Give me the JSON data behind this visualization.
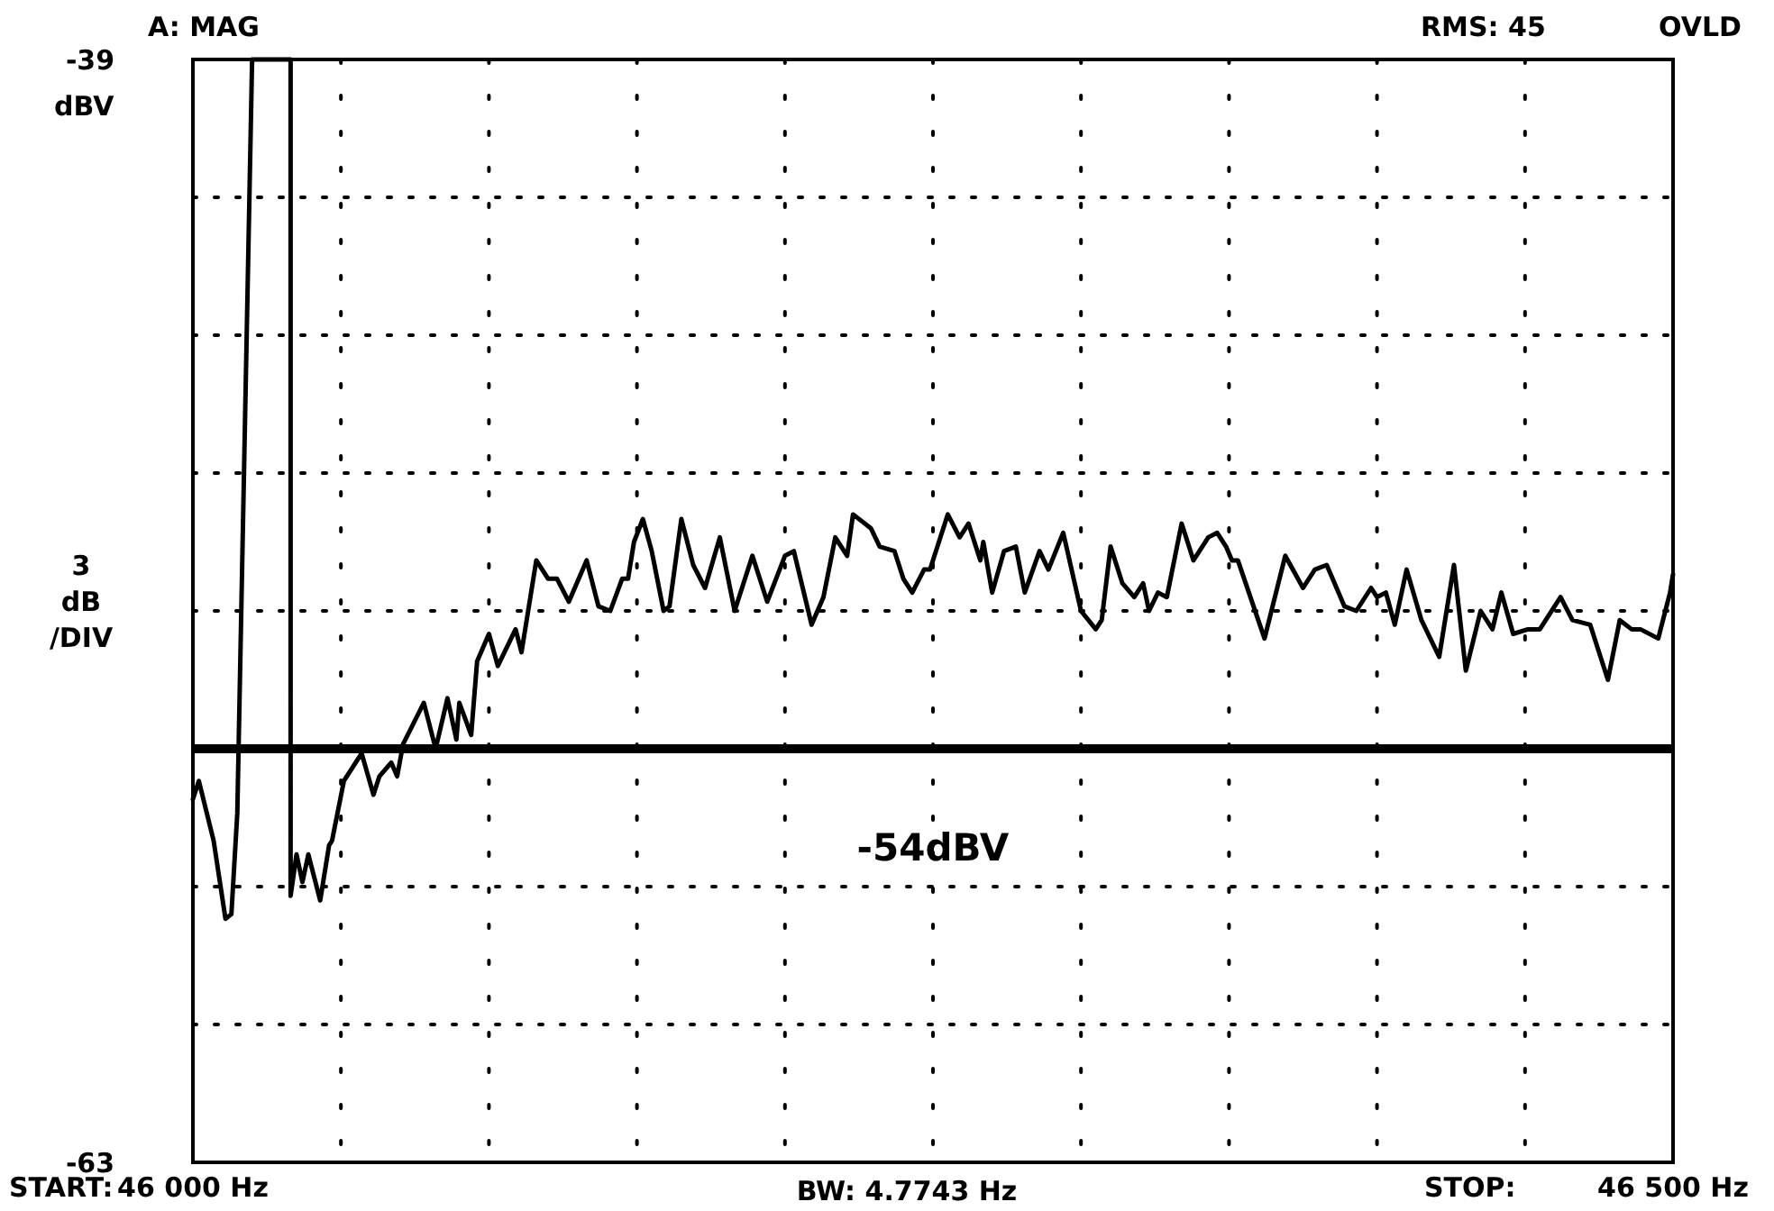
{
  "chart_data": {
    "type": "line",
    "ylabel": "3 dB /DIV",
    "xlabel": "BW: 4.7743 Hz",
    "annotations": [
      "A: MAG",
      "RMS: 45",
      "OVLD",
      "dBV",
      "START:",
      "STOP:"
    ],
    "xlim": [
      46000,
      46500
    ],
    "ylim": [
      -63,
      -39
    ],
    "xticks": [
      {
        "value": 46000,
        "label": "46 000 Hz"
      },
      {
        "value": 46050,
        "label": null
      },
      {
        "value": 46100,
        "label": null
      },
      {
        "value": 46150,
        "label": null
      },
      {
        "value": 46200,
        "label": null
      },
      {
        "value": 46250,
        "label": null
      },
      {
        "value": 46300,
        "label": null
      },
      {
        "value": 46350,
        "label": null
      },
      {
        "value": 46400,
        "label": null
      },
      {
        "value": 46450,
        "label": null
      },
      {
        "value": 46500,
        "label": "46 500 Hz"
      }
    ],
    "yticks": [
      -63,
      {
        "value": -60,
        "label": null
      },
      {
        "value": -57,
        "label": null
      },
      {
        "value": -54,
        "label": null
      },
      {
        "value": -51,
        "label": null
      },
      {
        "value": -48,
        "label": null
      },
      {
        "value": -45,
        "label": null
      },
      {
        "value": -42,
        "label": null
      },
      -39
    ],
    "grid": true,
    "line_style": "solid",
    "ref_lines": [
      {
        "axis": "y",
        "value": -54,
        "label": "-54dBV",
        "color": "#000000"
      }
    ],
    "series": [
      {
        "color": "#000000",
        "x": [
          46000,
          46002,
          46007,
          46011,
          46013,
          46015,
          46020,
          46033,
          46033,
          46035,
          46037,
          46039,
          46043,
          46046,
          46047,
          46051,
          46057,
          46061,
          46063,
          46067,
          46069,
          46071,
          46078,
          46082,
          46086,
          46089,
          46090,
          46094,
          46096,
          46100,
          46103,
          46109,
          46111,
          46116,
          46120,
          46123,
          46127,
          46133,
          46137,
          46141,
          46145,
          46147,
          46149,
          46152,
          46155,
          46159,
          46161,
          46165,
          46169,
          46173,
          46178,
          46183,
          46189,
          46194,
          46200,
          46203,
          46209,
          46213,
          46217,
          46221,
          46223,
          46229,
          46232,
          46237,
          46240,
          46243,
          46247,
          46249,
          46255,
          46259,
          46262,
          46266,
          46267,
          46270,
          46274,
          46278,
          46281,
          46286,
          46289,
          46294,
          46300,
          46305,
          46307,
          46310,
          46314,
          46318,
          46321,
          46323,
          46326,
          46329,
          46334,
          46338,
          46343,
          46346,
          46349,
          46351,
          46353,
          46362,
          46369,
          46375,
          46379,
          46383,
          46385,
          46389,
          46393,
          46398,
          46400,
          46403,
          46406,
          46410,
          46415,
          46421,
          46426,
          46430,
          46435,
          46439,
          46442,
          46446,
          46451,
          46455,
          46462,
          46466,
          46472,
          46478,
          46482,
          46486,
          46489,
          46495,
          46499,
          46500
        ],
        "values": [
          -55.1,
          -54.7,
          -56.0,
          -57.7,
          -57.6,
          -55.4,
          -39,
          -39,
          -57.2,
          -56.3,
          -56.9,
          -56.3,
          -57.3,
          -56.1,
          -56.0,
          -54.7,
          -54.1,
          -55.0,
          -54.6,
          -54.3,
          -54.6,
          -53.9,
          -53.0,
          -54.0,
          -52.9,
          -53.8,
          -53.0,
          -53.7,
          -52.1,
          -51.5,
          -52.2,
          -51.4,
          -51.9,
          -49.9,
          -50.3,
          -50.3,
          -50.8,
          -49.9,
          -50.9,
          -51.0,
          -50.3,
          -50.3,
          -49.5,
          -49.0,
          -49.7,
          -51.0,
          -50.9,
          -49.0,
          -50.0,
          -50.5,
          -49.4,
          -51.0,
          -49.8,
          -50.8,
          -49.8,
          -49.7,
          -51.3,
          -50.7,
          -49.4,
          -49.8,
          -48.9,
          -49.2,
          -49.6,
          -49.7,
          -50.3,
          -50.6,
          -50.1,
          -50.1,
          -48.9,
          -49.4,
          -49.1,
          -49.9,
          -49.5,
          -50.6,
          -49.7,
          -49.6,
          -50.6,
          -49.7,
          -50.1,
          -49.3,
          -51.0,
          -51.4,
          -51.2,
          -49.6,
          -50.4,
          -50.7,
          -50.4,
          -51.0,
          -50.6,
          -50.7,
          -49.1,
          -49.9,
          -49.4,
          -49.3,
          -49.6,
          -49.9,
          -49.9,
          -51.6,
          -49.8,
          -50.5,
          -50.1,
          -50.0,
          -50.3,
          -50.9,
          -51.0,
          -50.5,
          -50.7,
          -50.6,
          -51.3,
          -50.1,
          -51.2,
          -52.0,
          -50.0,
          -52.3,
          -51.0,
          -51.4,
          -50.6,
          -51.5,
          -51.4,
          -51.4,
          -50.7,
          -51.2,
          -51.3,
          -52.5,
          -51.2,
          -51.4,
          -51.4,
          -51.6,
          -50.6,
          -50.2
        ]
      }
    ]
  }
}
